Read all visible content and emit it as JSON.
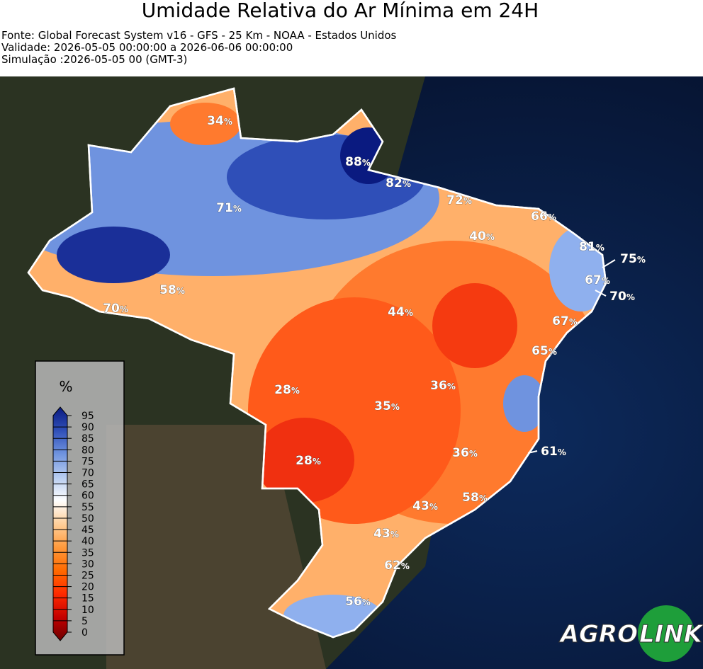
{
  "header": {
    "title": "Umidade Relativa do Ar Mínima em 24H",
    "lines": [
      "Fonte: Global Forecast System v16 - GFS - 25 Km - NOAA - Estados Unidos",
      "Validade: 2026-05-05 00:00:00 a 2026-06-06 00:00:00",
      "Simulação :2026-05-05 00 (GMT-3)"
    ]
  },
  "map": {
    "label_unit": "%",
    "labels": [
      34,
      88,
      82,
      72,
      66,
      71,
      40,
      81,
      75,
      67,
      70,
      58,
      70,
      44,
      67,
      65,
      28,
      36,
      35,
      61,
      36,
      28,
      58,
      43,
      43,
      62,
      56
    ]
  },
  "colorbar": {
    "title": "%",
    "ticks": [
      0,
      5,
      10,
      15,
      20,
      25,
      30,
      35,
      40,
      45,
      50,
      55,
      60,
      65,
      70,
      75,
      80,
      85,
      90,
      95
    ],
    "colors": [
      "#6b0000",
      "#c40000",
      "#ff2a00",
      "#ff6a00",
      "#ff9a3c",
      "#ffcf9a",
      "#ffffff",
      "#b7ccf0",
      "#6f93df",
      "#2f4fb8",
      "#0a1a80"
    ]
  },
  "logo": {
    "parts": [
      "AGRO",
      "LINK"
    ]
  }
}
